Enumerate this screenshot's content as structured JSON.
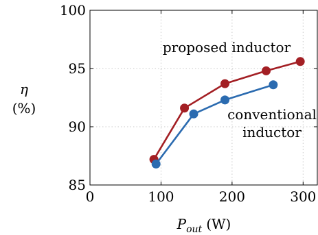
{
  "chart_data": {
    "type": "line",
    "title": "",
    "xlabel": {
      "main": "P",
      "sub": "out",
      "unit": "(W)"
    },
    "ylabel": {
      "symbol": "η",
      "unit": "(%)"
    },
    "xlim": [
      0,
      320
    ],
    "ylim": [
      85,
      100
    ],
    "xticks": [
      0,
      100,
      200,
      300
    ],
    "yticks": [
      85,
      90,
      95,
      100
    ],
    "grid": true,
    "series": [
      {
        "name": "proposed inductor",
        "color": "#a31f24",
        "x": [
          90,
          133,
          190,
          248,
          296
        ],
        "y": [
          87.2,
          91.6,
          93.7,
          94.8,
          95.6
        ]
      },
      {
        "name": "conventional inductor",
        "color": "#2b6bb0",
        "x": [
          93,
          146,
          190,
          258
        ],
        "y": [
          86.8,
          91.1,
          92.3,
          93.6
        ]
      }
    ],
    "annotations": [
      {
        "lines": [
          "proposed inductor"
        ],
        "series": 0
      },
      {
        "lines": [
          "conventional",
          "inductor"
        ],
        "series": 1
      }
    ]
  }
}
